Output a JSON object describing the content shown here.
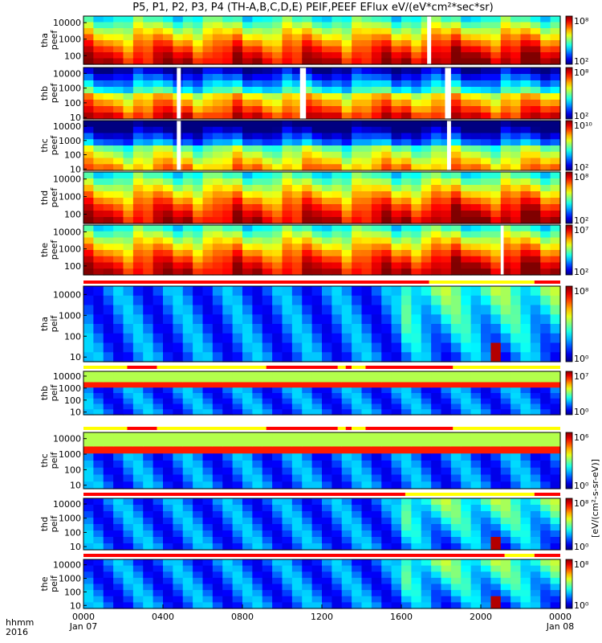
{
  "chart_data": {
    "type": "heatmap",
    "title": "P5, P1, P2, P3, P4 (TH-A,B,C,D,E) PEIF,PEEF EFlux eV/(eV*cm²*sec*sr)",
    "x_axis": {
      "row_label": "hhmm",
      "year_label": "2016",
      "ticks": [
        "0000",
        "0400",
        "0800",
        "1200",
        "1600",
        "2000",
        "0000"
      ],
      "date_labels": [
        "Jan 07",
        "",
        "",
        "",
        "",
        "",
        "Jan 08"
      ],
      "range_hours": [
        0,
        24
      ]
    },
    "colorbar_label": "[eV/(cm²-s-sr-eV)]",
    "panels": [
      {
        "id": "tha-peef",
        "probe": "tha",
        "quantity": "peef",
        "species": "electron",
        "yticks": [
          "10000",
          "1000",
          "100"
        ],
        "ylim_eV": [
          30,
          25000
        ],
        "cbar": {
          "max": "10⁸",
          "min": "10²"
        },
        "gaps": [
          [
            17.3,
            17.5
          ]
        ],
        "status_bar": []
      },
      {
        "id": "thb-peef",
        "probe": "thb",
        "quantity": "peef",
        "species": "electron",
        "yticks": [
          "10000",
          "1000",
          "100",
          "10"
        ],
        "ylim_eV": [
          8,
          25000
        ],
        "cbar": {
          "max": "10⁸",
          "min": "10²"
        },
        "gaps": [
          [
            4.7,
            4.9
          ],
          [
            10.9,
            11.2
          ],
          [
            18.2,
            18.5
          ]
        ],
        "status_bar": []
      },
      {
        "id": "thc-peef",
        "probe": "thc",
        "quantity": "peef",
        "species": "electron",
        "yticks": [
          "10000",
          "1000",
          "100",
          "10"
        ],
        "ylim_eV": [
          8,
          25000
        ],
        "cbar": {
          "max": "10¹⁰",
          "min": "10²"
        },
        "gaps": [
          [
            4.7,
            4.9
          ],
          [
            18.3,
            18.5
          ]
        ],
        "status_bar": []
      },
      {
        "id": "thd-peef",
        "probe": "thd",
        "quantity": "peef",
        "species": "electron",
        "yticks": [
          "10000",
          "1000",
          "100"
        ],
        "ylim_eV": [
          30,
          25000
        ],
        "cbar": {
          "max": "10⁸",
          "min": "10²"
        },
        "gaps": [],
        "status_bar": []
      },
      {
        "id": "the-peef",
        "probe": "the",
        "quantity": "peef",
        "species": "electron",
        "yticks": [
          "10000",
          "1000",
          "100"
        ],
        "ylim_eV": [
          30,
          25000
        ],
        "cbar": {
          "max": "10⁷",
          "min": "10²"
        },
        "gaps": [
          [
            21.0,
            21.15
          ]
        ],
        "status_bar": []
      },
      {
        "id": "tha-peif",
        "probe": "tha",
        "quantity": "peif",
        "species": "ion",
        "yticks": [
          "10000",
          "1000",
          "100",
          "10"
        ],
        "ylim_eV": [
          6,
          25000
        ],
        "cbar": {
          "max": "10⁸",
          "min": "10⁰"
        },
        "gaps": [],
        "status_bar": [
          [
            0,
            17.4,
            "red"
          ],
          [
            17.4,
            22.7,
            "yellow"
          ],
          [
            22.7,
            24,
            "red"
          ]
        ]
      },
      {
        "id": "thb-peif",
        "probe": "thb",
        "quantity": "peif",
        "species": "ion",
        "yticks": [
          "10000",
          "1000",
          "100",
          "10"
        ],
        "ylim_eV": [
          6,
          25000
        ],
        "cbar": {
          "max": "10⁷",
          "min": "10⁰"
        },
        "gaps": [],
        "status_bar": [
          [
            0,
            2.2,
            "yellow"
          ],
          [
            2.2,
            3.7,
            "red"
          ],
          [
            3.7,
            9.2,
            "yellow"
          ],
          [
            9.2,
            12.8,
            "red"
          ],
          [
            12.8,
            13.2,
            "yellow"
          ],
          [
            13.2,
            13.5,
            "red"
          ],
          [
            13.5,
            14.2,
            "yellow"
          ],
          [
            14.2,
            18.6,
            "red"
          ],
          [
            18.6,
            24,
            "yellow"
          ]
        ]
      },
      {
        "id": "thc-peif",
        "probe": "thc",
        "quantity": "peif",
        "species": "ion",
        "yticks": [
          "10000",
          "1000",
          "100",
          "10"
        ],
        "ylim_eV": [
          6,
          25000
        ],
        "cbar": {
          "max": "10⁶",
          "min": "10⁰"
        },
        "gaps": [],
        "status_bar": [
          [
            0,
            2.2,
            "yellow"
          ],
          [
            2.2,
            3.7,
            "red"
          ],
          [
            3.7,
            9.2,
            "yellow"
          ],
          [
            9.2,
            12.8,
            "red"
          ],
          [
            12.8,
            13.2,
            "yellow"
          ],
          [
            13.2,
            13.5,
            "red"
          ],
          [
            13.5,
            14.2,
            "yellow"
          ],
          [
            14.2,
            18.6,
            "red"
          ],
          [
            18.6,
            24,
            "yellow"
          ]
        ]
      },
      {
        "id": "thd-peif",
        "probe": "thd",
        "quantity": "peif",
        "species": "ion",
        "yticks": [
          "10000",
          "1000",
          "100",
          "10"
        ],
        "ylim_eV": [
          6,
          25000
        ],
        "cbar": {
          "max": "10⁸",
          "min": "10⁰"
        },
        "gaps": [],
        "status_bar": [
          [
            0,
            16.2,
            "red"
          ],
          [
            16.2,
            22.7,
            "yellow"
          ],
          [
            22.7,
            24,
            "red"
          ]
        ]
      },
      {
        "id": "the-peif",
        "probe": "the",
        "quantity": "peif",
        "species": "ion",
        "yticks": [
          "10000",
          "1000",
          "100",
          "10"
        ],
        "ylim_eV": [
          6,
          25000
        ],
        "cbar": {
          "max": "10⁸",
          "min": "10⁰"
        },
        "gaps": [],
        "status_bar": [
          [
            0,
            21.2,
            "red"
          ],
          [
            21.2,
            22.7,
            "yellow"
          ],
          [
            22.7,
            24,
            "red"
          ]
        ]
      }
    ]
  }
}
